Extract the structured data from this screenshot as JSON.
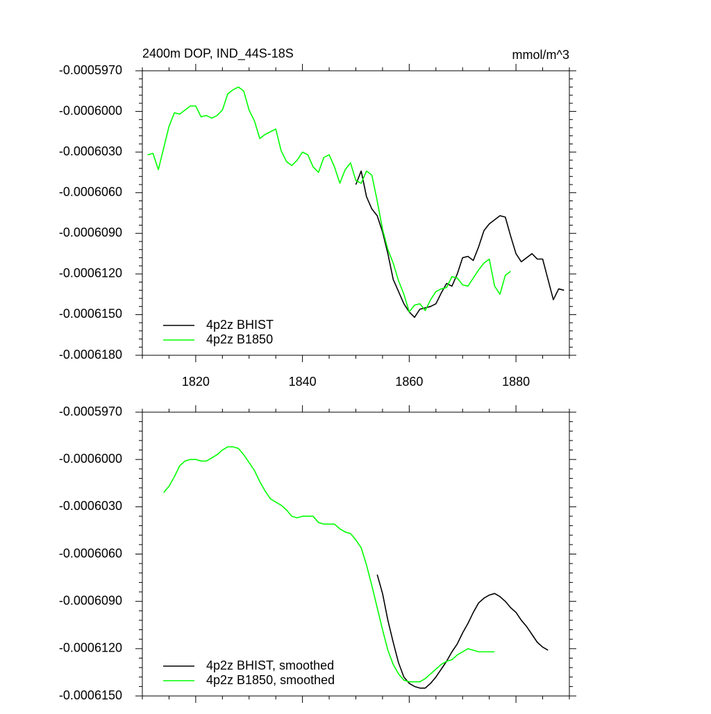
{
  "chart_data": [
    {
      "type": "line",
      "title": "2400m DOP, IND_44S-18S",
      "units_label": "mmol/m^3",
      "xlim": [
        1810,
        1890
      ],
      "xticks": [
        1820,
        1840,
        1860,
        1880
      ],
      "show_xtick_labels": true,
      "ylim": [
        -0.000618,
        -0.000597
      ],
      "yticks": [
        {
          "value": -0.000597,
          "label": "-0.0005970"
        },
        {
          "value": -0.0006,
          "label": "-0.0006000"
        },
        {
          "value": -0.000603,
          "label": "-0.0006030"
        },
        {
          "value": -0.000606,
          "label": "-0.0006060"
        },
        {
          "value": -0.000609,
          "label": "-0.0006090"
        },
        {
          "value": -0.000612,
          "label": "-0.0006120"
        },
        {
          "value": -0.000615,
          "label": "-0.0006150"
        },
        {
          "value": -0.000618,
          "label": "-0.0006180"
        }
      ],
      "legend": "lower left",
      "series": [
        {
          "name": "4p2z BHIST",
          "color": "#000000",
          "x": [
            1850,
            1851,
            1852,
            1853,
            1854,
            1855,
            1856,
            1857,
            1858,
            1859,
            1860,
            1861,
            1862,
            1863,
            1864,
            1865,
            1866,
            1867,
            1868,
            1869,
            1870,
            1871,
            1872,
            1873,
            1874,
            1875,
            1876,
            1877,
            1878,
            1879,
            1880,
            1881,
            1882,
            1883,
            1884,
            1885,
            1886,
            1887,
            1888,
            1889
          ],
          "values": [
            -0.0006054,
            -0.0006044,
            -0.0006063,
            -0.0006072,
            -0.0006077,
            -0.0006089,
            -0.0006105,
            -0.0006124,
            -0.0006133,
            -0.0006142,
            -0.0006148,
            -0.0006152,
            -0.0006146,
            -0.0006145,
            -0.0006144,
            -0.0006142,
            -0.0006134,
            -0.0006127,
            -0.0006129,
            -0.000612,
            -0.0006108,
            -0.0006107,
            -0.000611,
            -0.00061,
            -0.0006088,
            -0.0006083,
            -0.000608,
            -0.0006077,
            -0.0006078,
            -0.0006092,
            -0.0006105,
            -0.0006111,
            -0.0006108,
            -0.0006105,
            -0.0006109,
            -0.0006109,
            -0.0006124,
            -0.0006139,
            -0.0006131,
            -0.0006132
          ]
        },
        {
          "name": "4p2z B1850",
          "color": "#00ff00",
          "x": [
            1811,
            1812,
            1813,
            1814,
            1815,
            1816,
            1817,
            1818,
            1819,
            1820,
            1821,
            1822,
            1823,
            1824,
            1825,
            1826,
            1827,
            1828,
            1829,
            1830,
            1831,
            1832,
            1833,
            1834,
            1835,
            1836,
            1837,
            1838,
            1839,
            1840,
            1841,
            1842,
            1843,
            1844,
            1845,
            1846,
            1847,
            1848,
            1849,
            1850,
            1851,
            1852,
            1853,
            1854,
            1855,
            1856,
            1857,
            1858,
            1859,
            1860,
            1861,
            1862,
            1863,
            1864,
            1865,
            1866,
            1867,
            1868,
            1869,
            1870,
            1871,
            1872,
            1873,
            1874,
            1875,
            1876,
            1877,
            1878,
            1879
          ],
          "values": [
            -0.0006032,
            -0.0006031,
            -0.0006043,
            -0.0006027,
            -0.0006011,
            -0.0006001,
            -0.0006002,
            -0.0005999,
            -0.0005996,
            -0.0005996,
            -0.0006004,
            -0.0006003,
            -0.0006005,
            -0.0006003,
            -0.0005999,
            -0.0005987,
            -0.0005984,
            -0.0005982,
            -0.0005985,
            -0.0005999,
            -0.0006007,
            -0.000602,
            -0.0006017,
            -0.0006015,
            -0.0006013,
            -0.0006029,
            -0.0006037,
            -0.000604,
            -0.0006036,
            -0.000603,
            -0.0006032,
            -0.0006041,
            -0.0006045,
            -0.0006034,
            -0.0006032,
            -0.0006041,
            -0.0006053,
            -0.0006043,
            -0.0006038,
            -0.0006051,
            -0.0006053,
            -0.0006044,
            -0.0006047,
            -0.0006066,
            -0.0006087,
            -0.0006102,
            -0.0006112,
            -0.0006125,
            -0.0006135,
            -0.0006148,
            -0.0006143,
            -0.0006142,
            -0.0006147,
            -0.0006139,
            -0.0006133,
            -0.0006131,
            -0.000613,
            -0.0006122,
            -0.0006123,
            -0.0006128,
            -0.0006129,
            -0.0006123,
            -0.0006117,
            -0.0006112,
            -0.0006109,
            -0.0006129,
            -0.0006135,
            -0.0006121,
            -0.0006118
          ]
        }
      ]
    },
    {
      "type": "line",
      "xlim": [
        1810,
        1890
      ],
      "xticks": [
        1820,
        1840,
        1860,
        1880
      ],
      "show_xtick_labels": false,
      "ylim": [
        -0.000615,
        -0.000597
      ],
      "yticks": [
        {
          "value": -0.000597,
          "label": "-0.0005970"
        },
        {
          "value": -0.0006,
          "label": "-0.0006000"
        },
        {
          "value": -0.000603,
          "label": "-0.0006030"
        },
        {
          "value": -0.000606,
          "label": "-0.0006060"
        },
        {
          "value": -0.000609,
          "label": "-0.0006090"
        },
        {
          "value": -0.000612,
          "label": "-0.0006120"
        },
        {
          "value": -0.000615,
          "label": "-0.0006150"
        }
      ],
      "legend": "lower left",
      "series": [
        {
          "name": "4p2z BHIST, smoothed",
          "color": "#000000",
          "x": [
            1854,
            1855,
            1856,
            1857,
            1858,
            1859,
            1860,
            1861,
            1862,
            1863,
            1864,
            1865,
            1866,
            1867,
            1868,
            1869,
            1870,
            1871,
            1872,
            1873,
            1874,
            1875,
            1876,
            1877,
            1878,
            1879,
            1880,
            1881,
            1882,
            1883,
            1884,
            1885,
            1886
          ],
          "values": [
            -0.0006073,
            -0.0006085,
            -0.0006102,
            -0.0006116,
            -0.0006129,
            -0.0006138,
            -0.0006142,
            -0.0006144,
            -0.0006145,
            -0.0006145,
            -0.0006142,
            -0.0006138,
            -0.0006133,
            -0.0006128,
            -0.0006122,
            -0.0006117,
            -0.000611,
            -0.0006104,
            -0.0006097,
            -0.0006091,
            -0.0006088,
            -0.0006086,
            -0.0006085,
            -0.0006087,
            -0.000609,
            -0.0006094,
            -0.0006097,
            -0.0006102,
            -0.0006106,
            -0.0006111,
            -0.0006116,
            -0.0006119,
            -0.0006121
          ]
        },
        {
          "name": "4p2z B1850, smoothed",
          "color": "#00ff00",
          "x": [
            1814,
            1815,
            1816,
            1817,
            1818,
            1819,
            1820,
            1821,
            1822,
            1823,
            1824,
            1825,
            1826,
            1827,
            1828,
            1829,
            1830,
            1831,
            1832,
            1833,
            1834,
            1835,
            1836,
            1837,
            1838,
            1839,
            1840,
            1841,
            1842,
            1843,
            1844,
            1845,
            1846,
            1847,
            1848,
            1849,
            1850,
            1851,
            1852,
            1853,
            1854,
            1855,
            1856,
            1857,
            1858,
            1859,
            1860,
            1861,
            1862,
            1863,
            1864,
            1865,
            1866,
            1867,
            1868,
            1869,
            1870,
            1871,
            1872,
            1873,
            1874,
            1875,
            1876
          ],
          "values": [
            -0.0006021,
            -0.0006017,
            -0.0006011,
            -0.0006004,
            -0.0006001,
            -0.0006,
            -0.0006,
            -0.0006001,
            -0.0006001,
            -0.0005999,
            -0.0005997,
            -0.0005994,
            -0.0005992,
            -0.0005992,
            -0.0005993,
            -0.0005997,
            -0.0006002,
            -0.0006007,
            -0.0006014,
            -0.000602,
            -0.0006025,
            -0.0006027,
            -0.0006029,
            -0.0006032,
            -0.0006036,
            -0.0006037,
            -0.0006036,
            -0.0006036,
            -0.0006036,
            -0.000604,
            -0.0006041,
            -0.0006041,
            -0.0006041,
            -0.0006044,
            -0.0006046,
            -0.0006047,
            -0.0006051,
            -0.0006056,
            -0.0006067,
            -0.000608,
            -0.0006094,
            -0.0006108,
            -0.0006121,
            -0.000613,
            -0.0006136,
            -0.000614,
            -0.0006141,
            -0.0006141,
            -0.0006141,
            -0.0006139,
            -0.0006136,
            -0.0006133,
            -0.000613,
            -0.0006128,
            -0.0006127,
            -0.0006124,
            -0.0006122,
            -0.000612,
            -0.0006121,
            -0.0006122,
            -0.0006122,
            -0.0006122,
            -0.0006122
          ]
        }
      ]
    }
  ]
}
